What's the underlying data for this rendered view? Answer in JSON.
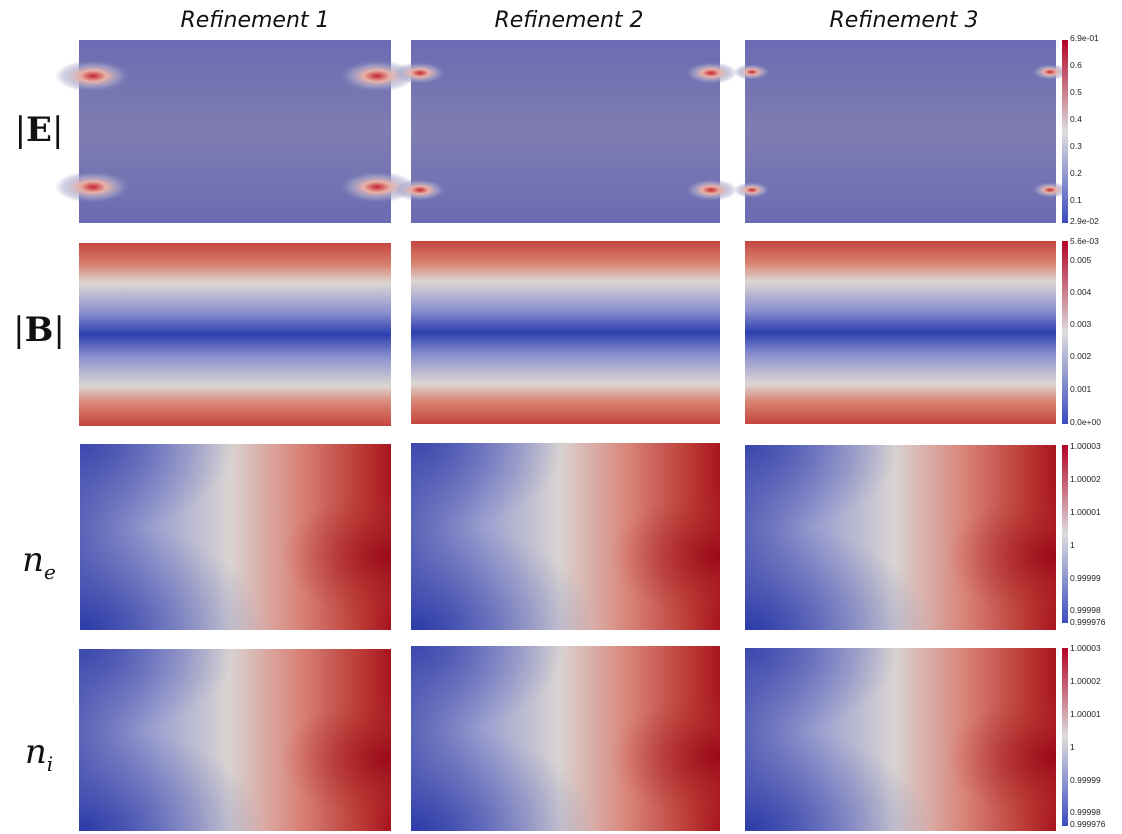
{
  "columns": [
    "Refinement 1",
    "Refinement 2",
    "Refinement 3"
  ],
  "rows": [
    {
      "id": "E",
      "label": "|E|",
      "field": "efield",
      "colorbar": [
        "6.9e-01",
        "0.6",
        "0.5",
        "0.4",
        "0.3",
        "0.2",
        "0.1",
        "2.9e-02"
      ]
    },
    {
      "id": "B",
      "label": "|B|",
      "field": "bfield",
      "colorbar": [
        "5.6e-03",
        "0.005",
        "0.004",
        "0.003",
        "0.002",
        "0.001",
        "0.0e+00"
      ]
    },
    {
      "id": "ne",
      "label": "n_e",
      "field": "density",
      "colorbar": [
        "1.00003",
        "1.00002",
        "1.00001",
        "1",
        "0.99999",
        "0.99998",
        "0.999976"
      ]
    },
    {
      "id": "ni",
      "label": "n_i",
      "field": "density",
      "colorbar": [
        "1.00003",
        "1.00002",
        "1.00001",
        "1",
        "0.99999",
        "0.99998",
        "0.999976"
      ]
    }
  ],
  "colors": {
    "low": "#3b4cc0",
    "mid": "#dddddd",
    "high": "#b40426"
  }
}
